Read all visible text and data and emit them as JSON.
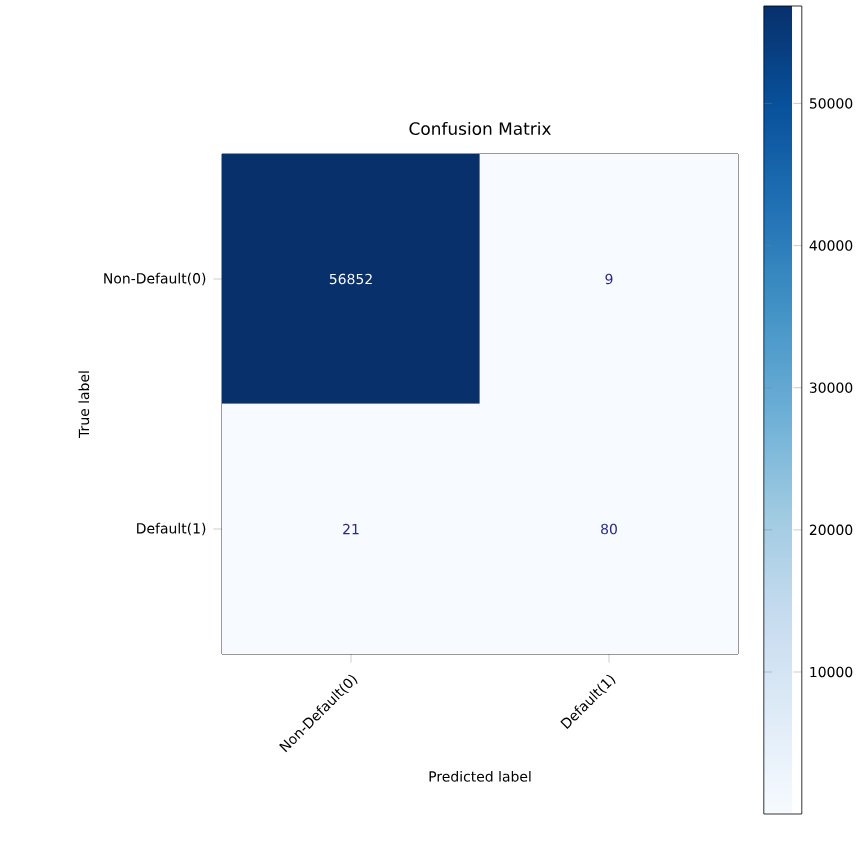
{
  "chart_data": {
    "type": "heatmap",
    "title": "Confusion Matrix",
    "xlabel": "Predicted label",
    "ylabel": "True label",
    "categories": [
      "Non-Default(0)",
      "Default(1)"
    ],
    "y_categories": [
      "Non-Default(0)",
      "Default(1)"
    ],
    "cells": [
      [
        56852,
        9
      ],
      [
        21,
        80
      ]
    ],
    "data_labels": true,
    "clim": [
      9,
      56852
    ],
    "cticks": [
      10000,
      20000,
      30000,
      40000,
      50000
    ]
  }
}
